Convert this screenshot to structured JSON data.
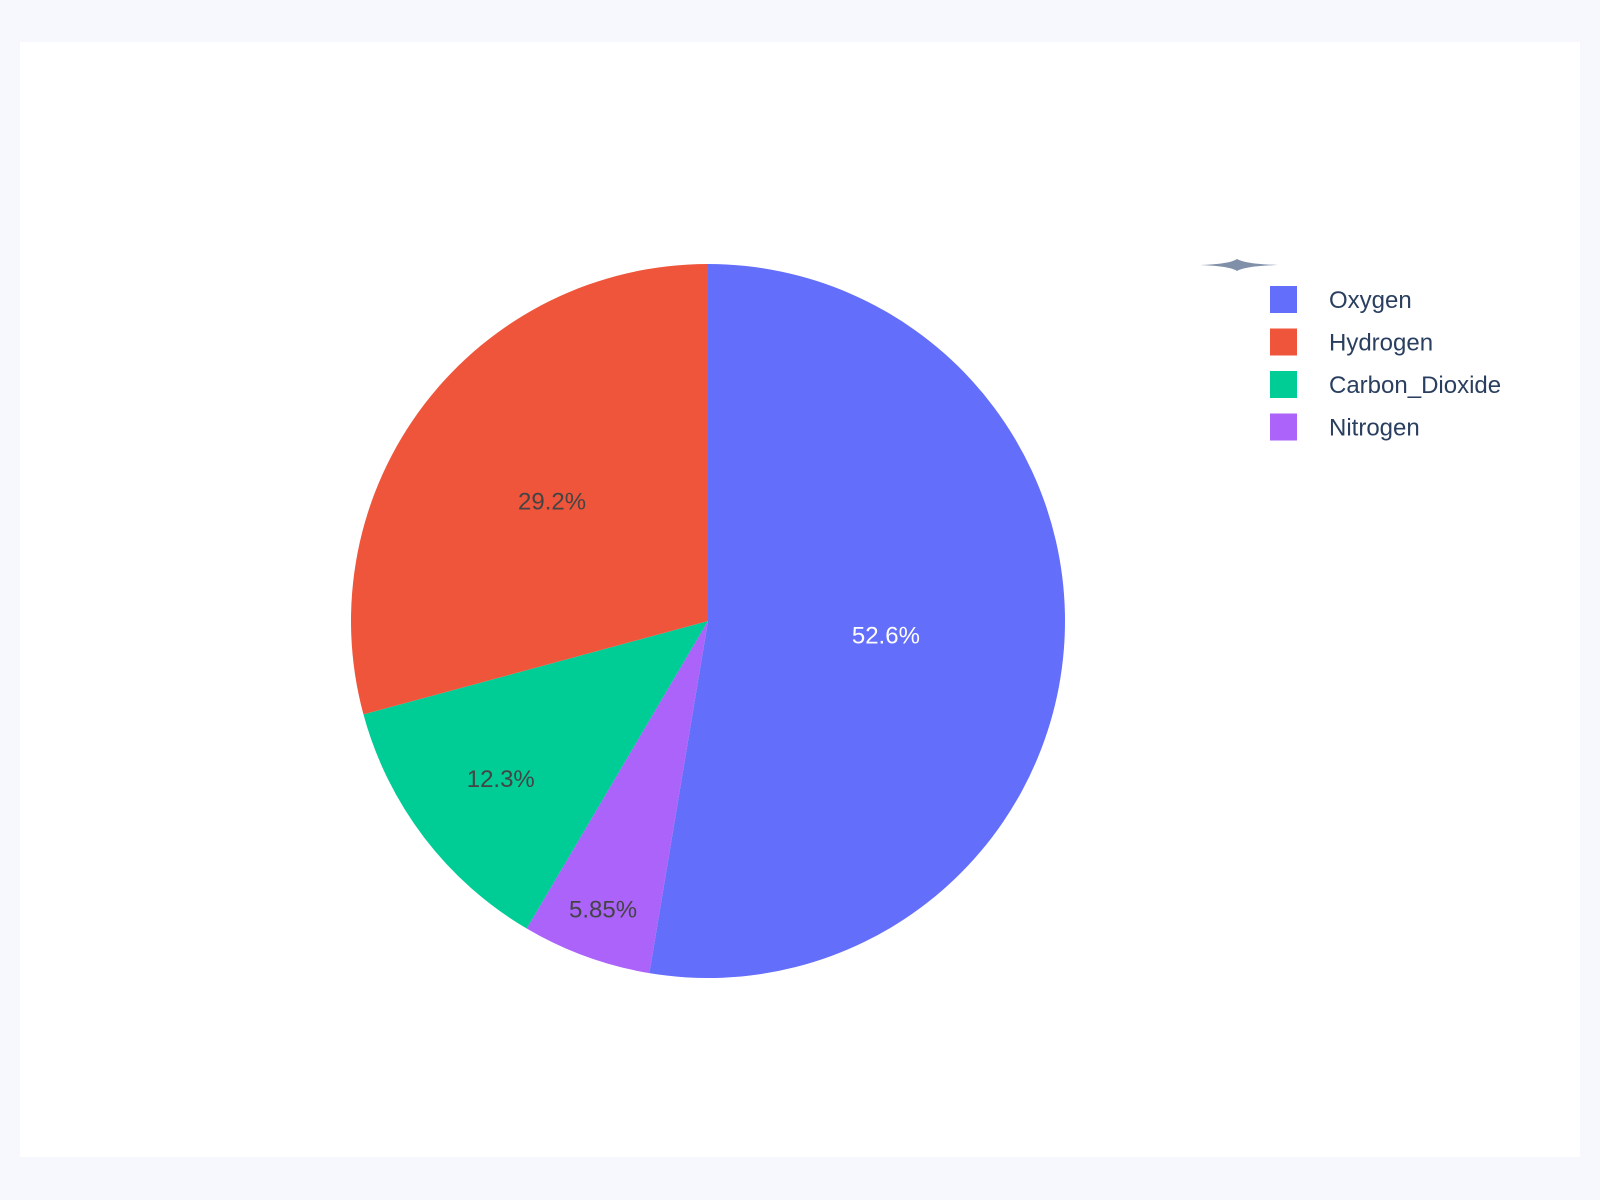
{
  "chart_data": {
    "type": "pie",
    "categories": [
      "Oxygen",
      "Hydrogen",
      "Carbon_Dioxide",
      "Nitrogen"
    ],
    "values_percent": [
      52.6,
      29.2,
      12.3,
      5.85
    ],
    "labels": [
      "52.6%",
      "29.2%",
      "12.3%",
      "5.85%"
    ],
    "colors": [
      "#636efa",
      "#ef553b",
      "#00cc96",
      "#ab63fa"
    ],
    "label_colors": [
      "#ffffff",
      "#444444",
      "#444444",
      "#444444"
    ],
    "slice_order_clockwise_from_top": [
      "Oxygen",
      "Nitrogen",
      "Carbon_Dioxide",
      "Hydrogen"
    ],
    "legend": {
      "placement": "top-right",
      "items": [
        "Oxygen",
        "Hydrogen",
        "Carbon_Dioxide",
        "Nitrogen"
      ]
    },
    "text_color": "#2a3f5f",
    "background": "#f7f8fd"
  }
}
